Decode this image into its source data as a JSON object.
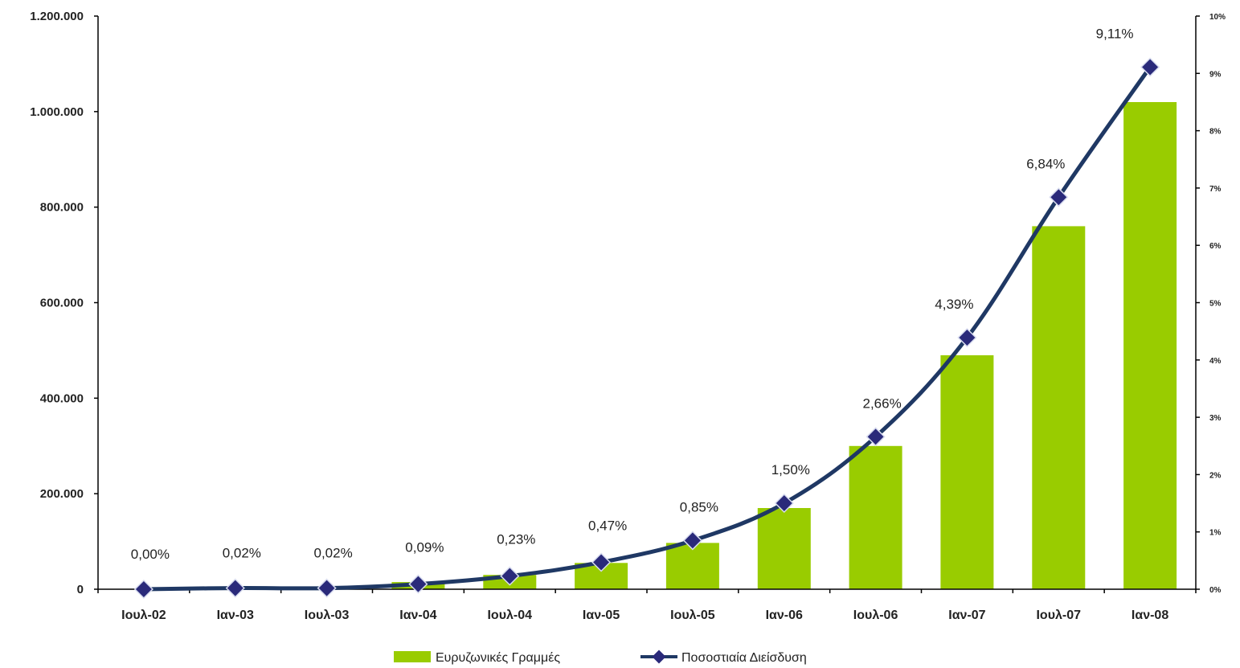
{
  "chart_data": {
    "type": "bar",
    "categories": [
      "Ιουλ-02",
      "Ιαν-03",
      "Ιουλ-03",
      "Ιαν-04",
      "Ιουλ-04",
      "Ιαν-05",
      "Ιουλ-05",
      "Ιαν-06",
      "Ιουλ-06",
      "Ιαν-07",
      "Ιουλ-07",
      "Ιαν-08"
    ],
    "series": [
      {
        "name": "Ευρυζωνικές Γραμμές",
        "type": "bar",
        "axis": "left",
        "color": "#99cc00",
        "values": [
          200,
          2000,
          3000,
          15000,
          30000,
          55000,
          97000,
          170000,
          300000,
          490000,
          760000,
          1020000
        ]
      },
      {
        "name": "Ποσοστιαία Διείσδυση",
        "type": "line",
        "axis": "right",
        "color": "#1f3864",
        "marker_color": "#2a2a7a",
        "values": [
          0.0,
          0.02,
          0.02,
          0.09,
          0.23,
          0.47,
          0.85,
          1.5,
          2.66,
          4.39,
          6.84,
          9.11
        ],
        "labels": [
          "0,00%",
          "0,02%",
          "0,02%",
          "0,09%",
          "0,23%",
          "0,47%",
          "0,85%",
          "1,50%",
          "2,66%",
          "4,39%",
          "6,84%",
          "9,11%"
        ]
      }
    ],
    "y_left": {
      "ylim": [
        0,
        1200000
      ],
      "ticks": [
        0,
        200000,
        400000,
        600000,
        800000,
        1000000,
        1200000
      ],
      "tick_labels": [
        "0",
        "200.000",
        "400.000",
        "600.000",
        "800.000",
        "1.000.000",
        "1.200.000"
      ]
    },
    "y_right": {
      "ylim": [
        0,
        10
      ],
      "ticks": [
        0,
        1,
        2,
        3,
        4,
        5,
        6,
        7,
        8,
        9,
        10
      ],
      "tick_labels": [
        "0%",
        "1%",
        "2%",
        "3%",
        "4%",
        "5%",
        "6%",
        "7%",
        "8%",
        "9%",
        "10%"
      ]
    },
    "grid": false,
    "legend_position": "bottom"
  }
}
